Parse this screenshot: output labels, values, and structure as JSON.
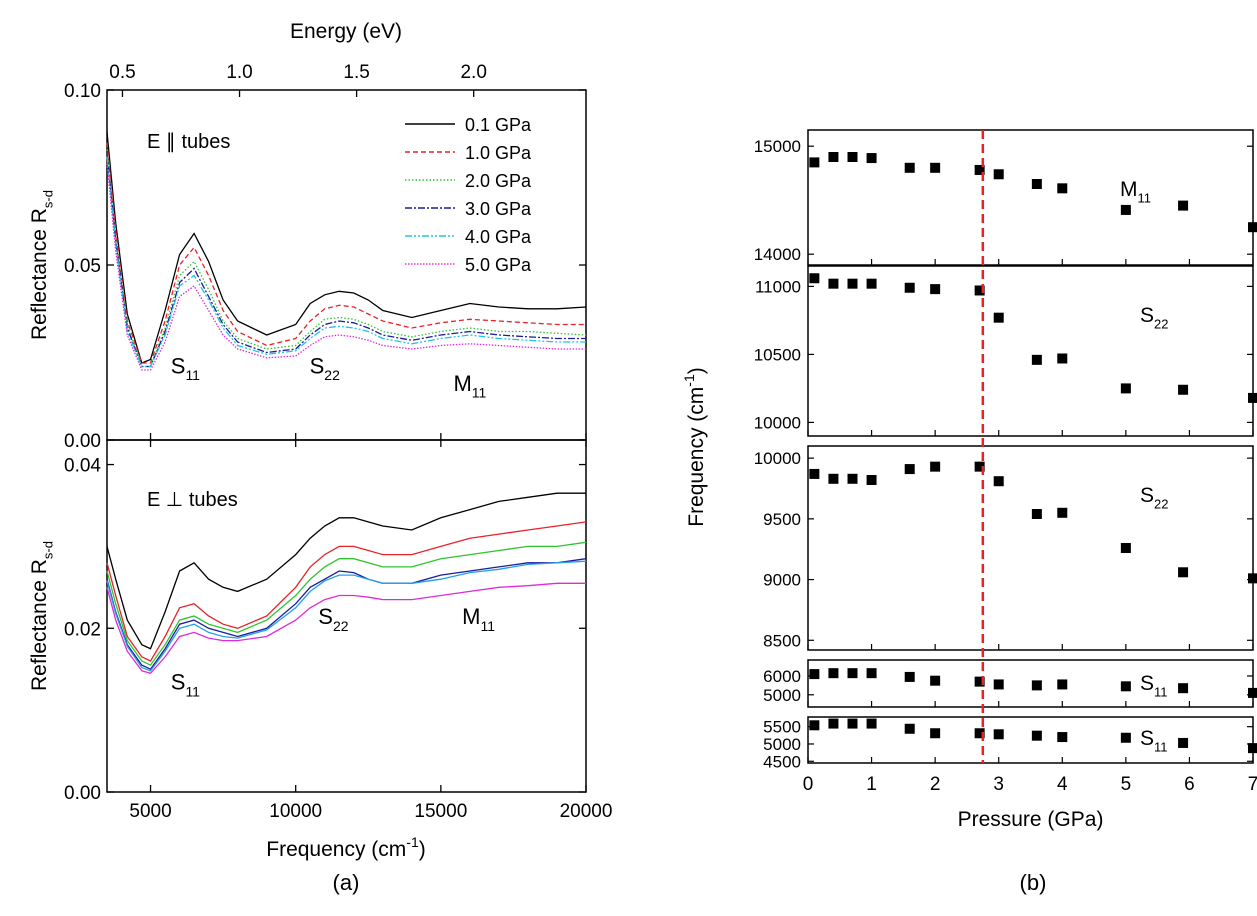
{
  "figure_labels": {
    "a": "(a)",
    "b": "(b)"
  },
  "chart_data": [
    {
      "id": "a-top",
      "type": "line",
      "top_axis": {
        "label": "Energy (eV)",
        "ticks": [
          "0.5",
          "1.0",
          "1.5",
          "2.0"
        ],
        "tick_values": [
          0.5,
          1.0,
          1.5,
          2.0
        ]
      },
      "xlim": [
        3500,
        20000
      ],
      "ylim": [
        0,
        0.1
      ],
      "yticks": [
        0.0,
        0.05,
        0.1
      ],
      "ytick_labels": [
        "0.00",
        "0.05",
        "0.10"
      ],
      "ylabel": "Reflectance R",
      "ylabel_sub": "s-d",
      "annotation": "E ∥ tubes",
      "peak_labels": [
        {
          "main": "S",
          "sub": "11",
          "x": 6200,
          "y": 0.019
        },
        {
          "main": "S",
          "sub": "22",
          "x": 11000,
          "y": 0.019
        },
        {
          "main": "M",
          "sub": "11",
          "x": 16000,
          "y": 0.014
        }
      ],
      "legend_position": "top-right",
      "x": [
        3500,
        3800,
        4200,
        4700,
        5000,
        5500,
        6000,
        6500,
        7000,
        7500,
        8000,
        9000,
        10000,
        10500,
        11000,
        11500,
        12000,
        12500,
        13000,
        14000,
        15000,
        16000,
        17000,
        18000,
        19000,
        20000
      ],
      "series": [
        {
          "name": "0.1 GPa",
          "color": "#000000",
          "dash": "",
          "values": [
            0.088,
            0.062,
            0.036,
            0.022,
            0.023,
            0.037,
            0.053,
            0.059,
            0.051,
            0.04,
            0.034,
            0.03,
            0.033,
            0.039,
            0.0415,
            0.0425,
            0.042,
            0.04,
            0.037,
            0.035,
            0.037,
            0.039,
            0.038,
            0.0375,
            0.0375,
            0.038
          ]
        },
        {
          "name": "1.0 GPa",
          "color": "#e8222a",
          "dash": "5,3",
          "values": [
            0.085,
            0.06,
            0.034,
            0.022,
            0.022,
            0.034,
            0.05,
            0.055,
            0.047,
            0.037,
            0.031,
            0.027,
            0.029,
            0.034,
            0.0375,
            0.0385,
            0.038,
            0.036,
            0.034,
            0.032,
            0.0335,
            0.0345,
            0.034,
            0.0335,
            0.033,
            0.033
          ]
        },
        {
          "name": "2.0 GPa",
          "color": "#2ec42e",
          "dash": "1.5,2",
          "values": [
            0.083,
            0.058,
            0.033,
            0.021,
            0.021,
            0.032,
            0.047,
            0.051,
            0.043,
            0.034,
            0.029,
            0.026,
            0.027,
            0.031,
            0.0345,
            0.035,
            0.0345,
            0.033,
            0.031,
            0.0295,
            0.031,
            0.032,
            0.031,
            0.031,
            0.0305,
            0.03
          ]
        },
        {
          "name": "3.0 GPa",
          "color": "#1c1c9c",
          "dash": "7,2,2,2",
          "values": [
            0.082,
            0.057,
            0.032,
            0.021,
            0.021,
            0.031,
            0.045,
            0.049,
            0.041,
            0.033,
            0.028,
            0.025,
            0.026,
            0.03,
            0.033,
            0.034,
            0.0335,
            0.032,
            0.03,
            0.0285,
            0.03,
            0.031,
            0.03,
            0.0295,
            0.029,
            0.029
          ]
        },
        {
          "name": "4.0 GPa",
          "color": "#22c4e6",
          "dash": "7,2,2,2,2,2",
          "values": [
            0.081,
            0.056,
            0.031,
            0.021,
            0.021,
            0.03,
            0.044,
            0.047,
            0.04,
            0.032,
            0.027,
            0.0245,
            0.0255,
            0.029,
            0.032,
            0.0325,
            0.032,
            0.031,
            0.029,
            0.0275,
            0.029,
            0.03,
            0.029,
            0.0285,
            0.028,
            0.028
          ]
        },
        {
          "name": "5.0 GPa",
          "color": "#e02ad8",
          "dash": "1.5,1.5",
          "values": [
            0.079,
            0.054,
            0.03,
            0.02,
            0.02,
            0.028,
            0.041,
            0.044,
            0.037,
            0.03,
            0.026,
            0.0235,
            0.024,
            0.027,
            0.0295,
            0.03,
            0.0295,
            0.0285,
            0.027,
            0.026,
            0.027,
            0.0275,
            0.027,
            0.0265,
            0.026,
            0.026
          ]
        }
      ]
    },
    {
      "id": "a-bottom",
      "type": "line",
      "xlim": [
        3500,
        20000
      ],
      "ylim": [
        0,
        0.043
      ],
      "xticks": [
        5000,
        10000,
        15000,
        20000
      ],
      "xtick_labels": [
        "5000",
        "10000",
        "15000",
        "20000"
      ],
      "xlabel": "Frequency (cm",
      "xlabel_sup": "-1",
      "xlabel_end": ")",
      "yticks": [
        0.0,
        0.02,
        0.04
      ],
      "ytick_labels": [
        "0.00",
        "0.02",
        "0.04"
      ],
      "ylabel": "Reflectance R",
      "ylabel_sub": "s-d",
      "annotation": "E ⊥ tubes",
      "peak_labels": [
        {
          "main": "S",
          "sub": "11",
          "x": 6200,
          "y": 0.0125
        },
        {
          "main": "S",
          "sub": "22",
          "x": 11300,
          "y": 0.0205
        },
        {
          "main": "M",
          "sub": "11",
          "x": 16300,
          "y": 0.0205
        }
      ],
      "x": [
        3500,
        3800,
        4200,
        4700,
        5000,
        5500,
        6000,
        6500,
        7000,
        7500,
        8000,
        9000,
        10000,
        10500,
        11000,
        11500,
        12000,
        12500,
        13000,
        14000,
        15000,
        16000,
        17000,
        18000,
        19000,
        20000
      ],
      "series": [
        {
          "name": "0.1 GPa",
          "color": "#000000",
          "values": [
            0.03,
            0.026,
            0.021,
            0.018,
            0.0175,
            0.022,
            0.027,
            0.028,
            0.026,
            0.025,
            0.0245,
            0.026,
            0.029,
            0.031,
            0.0325,
            0.0335,
            0.0335,
            0.033,
            0.0325,
            0.032,
            0.0335,
            0.0345,
            0.0355,
            0.036,
            0.0365,
            0.0365
          ]
        },
        {
          "name": "1.0 GPa",
          "color": "#e8222a",
          "values": [
            0.028,
            0.024,
            0.019,
            0.0165,
            0.016,
            0.019,
            0.0225,
            0.023,
            0.0215,
            0.0205,
            0.02,
            0.0215,
            0.025,
            0.0275,
            0.029,
            0.03,
            0.03,
            0.0295,
            0.029,
            0.029,
            0.03,
            0.031,
            0.0315,
            0.032,
            0.0325,
            0.033
          ]
        },
        {
          "name": "2.0 GPa",
          "color": "#2ec42e",
          "values": [
            0.027,
            0.023,
            0.0185,
            0.016,
            0.0155,
            0.018,
            0.021,
            0.0215,
            0.0205,
            0.02,
            0.0195,
            0.021,
            0.024,
            0.026,
            0.0275,
            0.0285,
            0.0285,
            0.028,
            0.0275,
            0.0275,
            0.0285,
            0.029,
            0.0295,
            0.03,
            0.03,
            0.0305
          ]
        },
        {
          "name": "3.0 GPa",
          "color": "#1c1c9c",
          "values": [
            0.026,
            0.022,
            0.018,
            0.0155,
            0.015,
            0.0175,
            0.0205,
            0.021,
            0.02,
            0.0195,
            0.019,
            0.02,
            0.023,
            0.025,
            0.026,
            0.027,
            0.0268,
            0.026,
            0.0255,
            0.0255,
            0.0265,
            0.027,
            0.0275,
            0.028,
            0.028,
            0.0285
          ]
        },
        {
          "name": "4.0 GPa",
          "color": "#22a0e6",
          "values": [
            0.0258,
            0.0218,
            0.0178,
            0.0152,
            0.0148,
            0.0172,
            0.02,
            0.0205,
            0.0195,
            0.019,
            0.0188,
            0.0198,
            0.0225,
            0.0245,
            0.0258,
            0.0265,
            0.0265,
            0.026,
            0.0255,
            0.0255,
            0.026,
            0.0268,
            0.0272,
            0.0278,
            0.028,
            0.0282
          ]
        },
        {
          "name": "5.0 GPa",
          "color": "#e02ad8",
          "values": [
            0.025,
            0.021,
            0.0172,
            0.0148,
            0.0145,
            0.0165,
            0.019,
            0.0195,
            0.0188,
            0.0185,
            0.0185,
            0.019,
            0.021,
            0.0225,
            0.0235,
            0.024,
            0.024,
            0.0238,
            0.0235,
            0.0235,
            0.024,
            0.0245,
            0.025,
            0.0252,
            0.0255,
            0.0255
          ]
        }
      ]
    },
    {
      "id": "b",
      "type": "scatter",
      "xlim": [
        0,
        7
      ],
      "xticks": [
        0,
        1,
        2,
        3,
        4,
        5,
        6,
        7
      ],
      "xtick_labels": [
        "0",
        "1",
        "2",
        "3",
        "4",
        "5",
        "6",
        "7"
      ],
      "xlabel": "Pressure (GPa)",
      "ylabel": "Frequency (cm",
      "ylabel_sup": "-1",
      "ylabel_end": ")",
      "dashed_line_x": 2.75,
      "dashed_line_color": "#e8222a",
      "marker_color": "#000000",
      "panels": [
        {
          "label_main": "M",
          "label_sub": "11",
          "ylim": [
            13900,
            15150
          ],
          "yticks": [
            14000,
            15000
          ],
          "ytick_labels": [
            "14000",
            "15000"
          ],
          "points": [
            [
              0.1,
              14850
            ],
            [
              0.4,
              14900
            ],
            [
              0.7,
              14900
            ],
            [
              1.0,
              14890
            ],
            [
              1.6,
              14800
            ],
            [
              2.0,
              14800
            ],
            [
              2.7,
              14780
            ],
            [
              3.0,
              14740
            ],
            [
              3.6,
              14650
            ],
            [
              4.0,
              14610
            ],
            [
              5.0,
              14410
            ],
            [
              5.9,
              14450
            ],
            [
              7.0,
              14250
            ]
          ]
        },
        {
          "label_main": "S",
          "label_sub": "22",
          "ylim": [
            9900,
            11150
          ],
          "yticks": [
            10000,
            10500,
            11000
          ],
          "ytick_labels": [
            "10000",
            "10500",
            "11000"
          ],
          "points": [
            [
              0.1,
              11060
            ],
            [
              0.4,
              11020
            ],
            [
              0.7,
              11020
            ],
            [
              1.0,
              11020
            ],
            [
              1.6,
              10990
            ],
            [
              2.0,
              10980
            ],
            [
              2.7,
              10970
            ],
            [
              3.0,
              10770
            ],
            [
              3.6,
              10460
            ],
            [
              4.0,
              10470
            ],
            [
              5.0,
              10250
            ],
            [
              5.9,
              10240
            ],
            [
              7.0,
              10180
            ]
          ]
        },
        {
          "label_main": "S",
          "label_sub": "22",
          "ylim": [
            8420,
            10100
          ],
          "yticks": [
            8500,
            9000,
            9500,
            10000
          ],
          "ytick_labels": [
            "8500",
            "9000",
            "9500",
            "10000"
          ],
          "points": [
            [
              0.1,
              9870
            ],
            [
              0.4,
              9830
            ],
            [
              0.7,
              9830
            ],
            [
              1.0,
              9820
            ],
            [
              1.6,
              9910
            ],
            [
              2.0,
              9930
            ],
            [
              2.7,
              9930
            ],
            [
              3.0,
              9810
            ],
            [
              3.6,
              9540
            ],
            [
              4.0,
              9550
            ],
            [
              5.0,
              9260
            ],
            [
              5.9,
              9060
            ],
            [
              7.0,
              9010
            ]
          ]
        },
        {
          "label_main": "S",
          "label_sub": "11",
          "ylim": [
            4350,
            6850
          ],
          "yticks": [
            5000,
            6000
          ],
          "ytick_labels": [
            "5000",
            "6000"
          ],
          "points": [
            [
              0.1,
              6100
            ],
            [
              0.4,
              6150
            ],
            [
              0.7,
              6150
            ],
            [
              1.0,
              6150
            ],
            [
              1.6,
              5950
            ],
            [
              2.0,
              5750
            ],
            [
              2.7,
              5700
            ],
            [
              3.0,
              5550
            ],
            [
              3.6,
              5500
            ],
            [
              4.0,
              5550
            ],
            [
              5.0,
              5450
            ],
            [
              5.9,
              5350
            ],
            [
              7.0,
              5100
            ]
          ]
        },
        {
          "label_main": "S",
          "label_sub": "11",
          "ylim": [
            4450,
            5780
          ],
          "yticks": [
            4500,
            5000,
            5500
          ],
          "ytick_labels": [
            "4500",
            "5000",
            "5500"
          ],
          "points": [
            [
              0.1,
              5540
            ],
            [
              0.4,
              5590
            ],
            [
              0.7,
              5590
            ],
            [
              1.0,
              5590
            ],
            [
              1.6,
              5440
            ],
            [
              2.0,
              5310
            ],
            [
              2.7,
              5310
            ],
            [
              3.0,
              5280
            ],
            [
              3.6,
              5240
            ],
            [
              4.0,
              5200
            ],
            [
              5.0,
              5180
            ],
            [
              5.9,
              5030
            ],
            [
              7.0,
              4880
            ]
          ]
        }
      ]
    }
  ]
}
